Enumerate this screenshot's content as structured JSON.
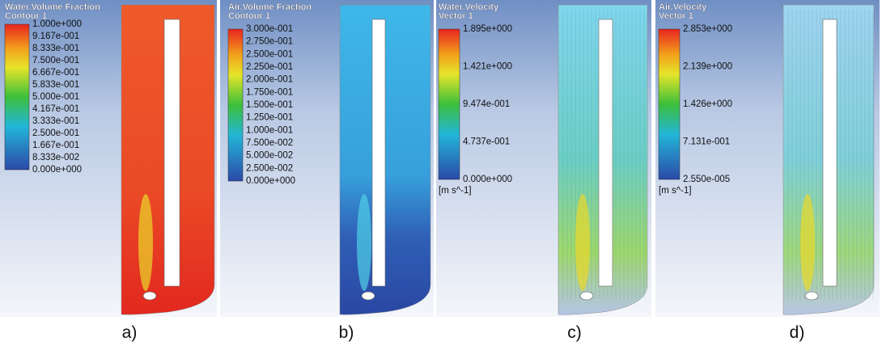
{
  "panels": [
    {
      "title": "Water.Volume Fraction",
      "subtitle": "Contour 1",
      "legend": [
        "1.000e+000",
        "9.167e-001",
        "8.333e-001",
        "7.500e-001",
        "6.667e-001",
        "5.833e-001",
        "5.000e-001",
        "4.167e-001",
        "3.333e-001",
        "2.500e-001",
        "1.667e-001",
        "8.333e-002",
        "0.000e+000"
      ],
      "caption": "a)"
    },
    {
      "title": "Air.Volume Fraction",
      "subtitle": "Contour 1",
      "legend": [
        "3.000e-001",
        "2.750e-001",
        "2.500e-001",
        "2.250e-001",
        "2.000e-001",
        "1.750e-001",
        "1.500e-001",
        "1.250e-001",
        "1.000e-001",
        "7.500e-002",
        "5.000e-002",
        "2.500e-002",
        "0.000e+000"
      ],
      "caption": "b)"
    },
    {
      "title": "Water.Velocity",
      "subtitle": "Vector 1",
      "legend": [
        "1.895e+000",
        "1.421e+000",
        "9.474e-001",
        "4.737e-001",
        "0.000e+000"
      ],
      "unit": "[m s^-1]",
      "caption": "c)"
    },
    {
      "title": "Air.Velocity",
      "subtitle": "Vector 1",
      "legend": [
        "2.853e+000",
        "2.139e+000",
        "1.426e+000",
        "7.131e-001",
        "2.550e-005"
      ],
      "unit": "[m s^-1]",
      "caption": "d)"
    }
  ]
}
